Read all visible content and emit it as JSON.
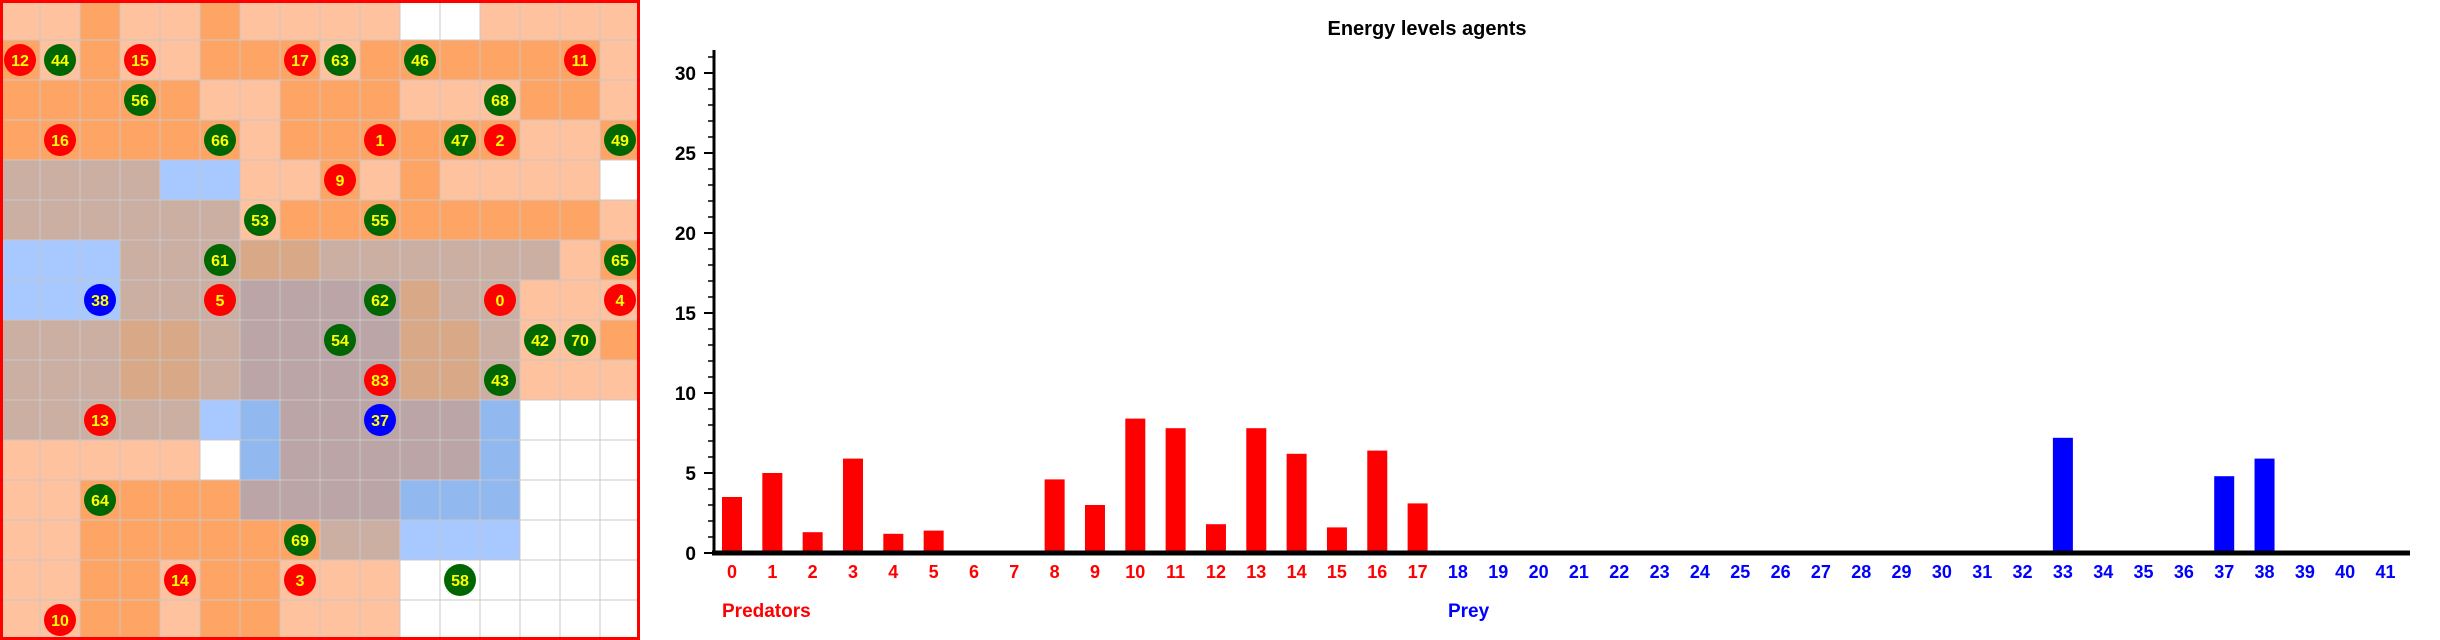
{
  "grid": {
    "rows": 16,
    "cols": 16,
    "cell_colors": [
      "ffc29f",
      "ffc29f",
      "fea566",
      "ffc29f",
      "ffc29f",
      "fea566",
      "ffc29f",
      "ffc29f",
      "ffc29f",
      "ffc29f",
      "ffffff",
      "ffffff",
      "ffc29f",
      "ffc29f",
      "ffc29f",
      "ffc29f",
      "fea566",
      "ffc29f",
      "fea566",
      "ffc29f",
      "ffc29f",
      "fea566",
      "fea566",
      "fea566",
      "ffc29f",
      "fea566",
      "fea566",
      "fea566",
      "fea566",
      "fea566",
      "fea566",
      "ffc29f",
      "fea566",
      "fea566",
      "fea566",
      "fea566",
      "fea566",
      "ffc29f",
      "ffc29f",
      "fea566",
      "fea566",
      "fea566",
      "ffc29f",
      "ffc29f",
      "ffc29f",
      "fea566",
      "fea566",
      "ffc29f",
      "fea566",
      "fea566",
      "fea566",
      "fea566",
      "fea566",
      "fea566",
      "ffc29f",
      "fea566",
      "fea566",
      "fea566",
      "fea566",
      "fea566",
      "fea566",
      "ffc29f",
      "ffc29f",
      "fea566",
      "cbafa3",
      "cbafa3",
      "cbafa3",
      "cbafa3",
      "a7c9ff",
      "a7c9ff",
      "ffc29f",
      "ffc29f",
      "fea566",
      "ffc29f",
      "fea566",
      "ffc29f",
      "ffc29f",
      "ffc29f",
      "ffc29f",
      "ffffff",
      "cbafa3",
      "cbafa3",
      "cbafa3",
      "cbafa3",
      "cbafa3",
      "cbafa3",
      "ffc29f",
      "fea566",
      "fea566",
      "fea566",
      "fea566",
      "fea566",
      "fea566",
      "fea566",
      "fea566",
      "ffc29f",
      "a7c9ff",
      "a7c9ff",
      "a7c9ff",
      "cbafa3",
      "cbafa3",
      "cbafa3",
      "d8a887",
      "d8a887",
      "cbafa3",
      "cbafa3",
      "cbafa3",
      "cbafa3",
      "cbafa3",
      "cbafa3",
      "ffc29f",
      "fea566",
      "a7c9ff",
      "a7c9ff",
      "a7c9ff",
      "cbafa3",
      "cbafa3",
      "cbafa3",
      "bba5a7",
      "bba5a7",
      "bba5a7",
      "bba5a7",
      "d8a887",
      "cbafa3",
      "cbafa3",
      "ffc29f",
      "ffc29f",
      "ffc29f",
      "cbafa3",
      "cbafa3",
      "cbafa3",
      "d8a887",
      "d8a887",
      "cbafa3",
      "bba5a7",
      "bba5a7",
      "bba5a7",
      "bba5a7",
      "d8a887",
      "d8a887",
      "cbafa3",
      "ffc29f",
      "ffc29f",
      "fea566",
      "cbafa3",
      "cbafa3",
      "cbafa3",
      "d8a887",
      "d8a887",
      "cbafa3",
      "bba5a7",
      "bba5a7",
      "bba5a7",
      "bba5a7",
      "d8a887",
      "d8a887",
      "cbafa3",
      "ffc29f",
      "ffc29f",
      "ffc29f",
      "cbafa3",
      "cbafa3",
      "cbafa3",
      "cbafa3",
      "cbafa3",
      "a7c9ff",
      "92b8f0",
      "bba5a7",
      "bba5a7",
      "bba5a7",
      "bba5a7",
      "bba5a7",
      "92b8f0",
      "ffffff",
      "ffffff",
      "ffffff",
      "ffc29f",
      "ffc29f",
      "ffc29f",
      "ffc29f",
      "ffc29f",
      "ffffff",
      "92b8f0",
      "bba5a7",
      "bba5a7",
      "bba5a7",
      "bba5a7",
      "bba5a7",
      "92b8f0",
      "ffffff",
      "ffffff",
      "ffffff",
      "ffc29f",
      "ffc29f",
      "fea566",
      "fea566",
      "fea566",
      "fea566",
      "bba5a7",
      "bba5a7",
      "bba5a7",
      "bba5a7",
      "92b8f0",
      "92b8f0",
      "92b8f0",
      "ffffff",
      "ffffff",
      "ffffff",
      "ffc29f",
      "ffc29f",
      "fea566",
      "fea566",
      "fea566",
      "fea566",
      "fea566",
      "fea566",
      "cbafa3",
      "cbafa3",
      "a7c9ff",
      "a7c9ff",
      "a7c9ff",
      "ffffff",
      "ffffff",
      "ffffff",
      "ffc29f",
      "ffc29f",
      "fea566",
      "fea566",
      "ffc29f",
      "fea566",
      "fea566",
      "ffc29f",
      "ffc29f",
      "ffc29f",
      "ffffff",
      "ffffff",
      "ffffff",
      "ffffff",
      "ffffff",
      "ffffff",
      "ffc29f",
      "ffc29f",
      "fea566",
      "fea566",
      "ffc29f",
      "fea566",
      "fea566",
      "ffc29f",
      "ffc29f",
      "ffc29f",
      "ffffff",
      "ffffff",
      "ffffff",
      "ffffff",
      "ffffff",
      "ffffff"
    ],
    "agents": [
      {
        "id": "12",
        "kind": "predator",
        "row": 1,
        "col": 0
      },
      {
        "id": "44",
        "kind": "grass",
        "row": 1,
        "col": 1
      },
      {
        "id": "15",
        "kind": "predator",
        "row": 1,
        "col": 3
      },
      {
        "id": "17",
        "kind": "predator",
        "row": 1,
        "col": 7
      },
      {
        "id": "63",
        "kind": "grass",
        "row": 1,
        "col": 8
      },
      {
        "id": "46",
        "kind": "grass",
        "row": 1,
        "col": 10
      },
      {
        "id": "11",
        "kind": "predator",
        "row": 1,
        "col": 14
      },
      {
        "id": "56",
        "kind": "grass",
        "row": 2,
        "col": 3
      },
      {
        "id": "68",
        "kind": "grass",
        "row": 2,
        "col": 12
      },
      {
        "id": "16",
        "kind": "predator",
        "row": 3,
        "col": 1
      },
      {
        "id": "66",
        "kind": "grass",
        "row": 3,
        "col": 5
      },
      {
        "id": "1",
        "kind": "predator",
        "row": 3,
        "col": 9
      },
      {
        "id": "47",
        "kind": "grass",
        "row": 3,
        "col": 11
      },
      {
        "id": "2",
        "kind": "predator",
        "row": 3,
        "col": 12
      },
      {
        "id": "49",
        "kind": "grass",
        "row": 3,
        "col": 15
      },
      {
        "id": "9",
        "kind": "predator",
        "row": 4,
        "col": 8
      },
      {
        "id": "53",
        "kind": "grass",
        "row": 5,
        "col": 6
      },
      {
        "id": "55",
        "kind": "grass",
        "row": 5,
        "col": 9
      },
      {
        "id": "61",
        "kind": "grass",
        "row": 6,
        "col": 5
      },
      {
        "id": "65",
        "kind": "grass",
        "row": 6,
        "col": 15
      },
      {
        "id": "38",
        "kind": "prey",
        "row": 7,
        "col": 2
      },
      {
        "id": "5",
        "kind": "predator",
        "row": 7,
        "col": 5
      },
      {
        "id": "62",
        "kind": "grass",
        "row": 7,
        "col": 9
      },
      {
        "id": "0",
        "kind": "predator",
        "row": 7,
        "col": 12
      },
      {
        "id": "4",
        "kind": "predator",
        "row": 7,
        "col": 15
      },
      {
        "id": "54",
        "kind": "grass",
        "row": 8,
        "col": 8
      },
      {
        "id": "42",
        "kind": "grass",
        "row": 8,
        "col": 13
      },
      {
        "id": "70",
        "kind": "grass",
        "row": 8,
        "col": 14
      },
      {
        "id": "83",
        "kind": "predator",
        "row": 9,
        "col": 9
      },
      {
        "id": "43",
        "kind": "grass",
        "row": 9,
        "col": 12
      },
      {
        "id": "13",
        "kind": "predator",
        "row": 10,
        "col": 2
      },
      {
        "id": "37",
        "kind": "prey",
        "row": 10,
        "col": 9
      },
      {
        "id": "64",
        "kind": "grass",
        "row": 12,
        "col": 2
      },
      {
        "id": "69",
        "kind": "grass",
        "row": 13,
        "col": 7
      },
      {
        "id": "14",
        "kind": "predator",
        "row": 14,
        "col": 4
      },
      {
        "id": "3",
        "kind": "predator",
        "row": 14,
        "col": 7
      },
      {
        "id": "58",
        "kind": "grass",
        "row": 14,
        "col": 11
      },
      {
        "id": "10",
        "kind": "predator",
        "row": 15,
        "col": 1
      }
    ],
    "colors": {
      "predator": "#ff0000",
      "prey": "#0000ff",
      "grass": "#006600",
      "label": "#ffff00",
      "border": "#ff0000"
    }
  },
  "chart_data": {
    "type": "bar",
    "title": "Energy levels agents",
    "ylim": [
      0,
      31
    ],
    "yticks": [
      0,
      5,
      10,
      15,
      20,
      25,
      30
    ],
    "categories": [
      "0",
      "1",
      "2",
      "3",
      "4",
      "5",
      "6",
      "7",
      "8",
      "9",
      "10",
      "11",
      "12",
      "13",
      "14",
      "15",
      "16",
      "17",
      "18",
      "19",
      "20",
      "21",
      "22",
      "23",
      "24",
      "25",
      "26",
      "27",
      "28",
      "29",
      "30",
      "31",
      "32",
      "33",
      "34",
      "35",
      "36",
      "37",
      "38",
      "39",
      "40",
      "41"
    ],
    "values": [
      3.5,
      5.0,
      1.3,
      5.9,
      1.2,
      1.4,
      0,
      0,
      4.6,
      3.0,
      8.4,
      7.8,
      1.8,
      7.8,
      6.2,
      1.6,
      6.4,
      3.1,
      0,
      0,
      0,
      0,
      0,
      0,
      0,
      0,
      0,
      0,
      0,
      0,
      0,
      0,
      0,
      7.2,
      0,
      0,
      0,
      4.8,
      5.9,
      0,
      0,
      0
    ],
    "groups": [
      {
        "name": "Predators",
        "first": 0,
        "last": 17,
        "color": "#ff0000"
      },
      {
        "name": "Prey",
        "first": 18,
        "last": 41,
        "color": "#0000ff"
      }
    ]
  }
}
